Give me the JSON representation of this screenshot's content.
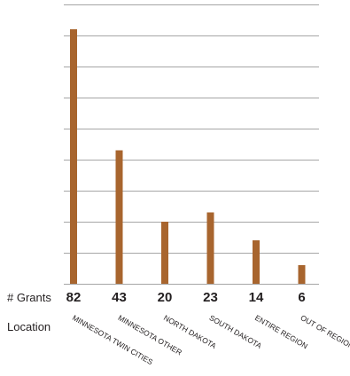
{
  "chart_data": {
    "type": "bar",
    "title": "",
    "xlabel": "Location",
    "ylabel": "",
    "count_row_label": "# Grants",
    "category_row_label": "Location",
    "categories": [
      "MINNESOTA TWIN CITIES",
      "MINNESOTA OTHER",
      "NORTH DAKOTA",
      "SOUTH DAKOTA",
      "ENTIRE REGION",
      "OUT OF REGION"
    ],
    "series": [
      {
        "values": [
          82,
          43,
          20,
          23,
          14,
          6
        ]
      }
    ],
    "ylim": [
      0,
      90
    ],
    "grid": true,
    "bar_color": "#a8652e",
    "grid_color": "#a6a6a6"
  }
}
